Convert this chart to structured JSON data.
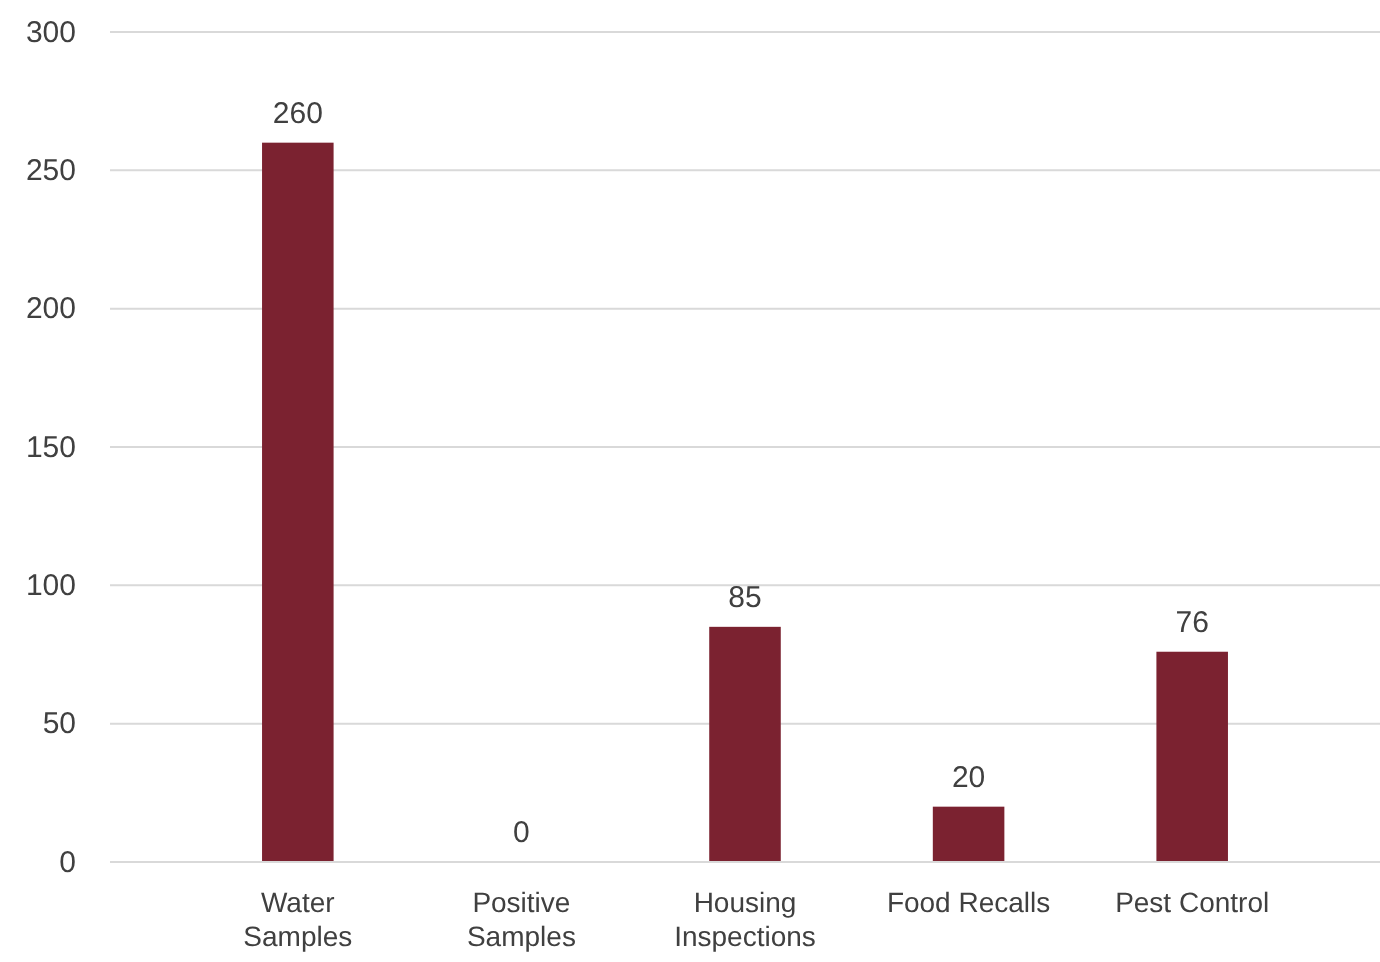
{
  "chart_data": {
    "type": "bar",
    "categories": [
      "Water Samples",
      "Positive Samples",
      "Housing Inspections",
      "Food Recalls",
      "Pest Control"
    ],
    "values": [
      260,
      0,
      85,
      20,
      76
    ],
    "color": "#7b2230",
    "ylim": [
      0,
      300
    ],
    "yticks": [
      0,
      50,
      100,
      150,
      200,
      250,
      300
    ],
    "grid": "y",
    "data_labels": true
  }
}
